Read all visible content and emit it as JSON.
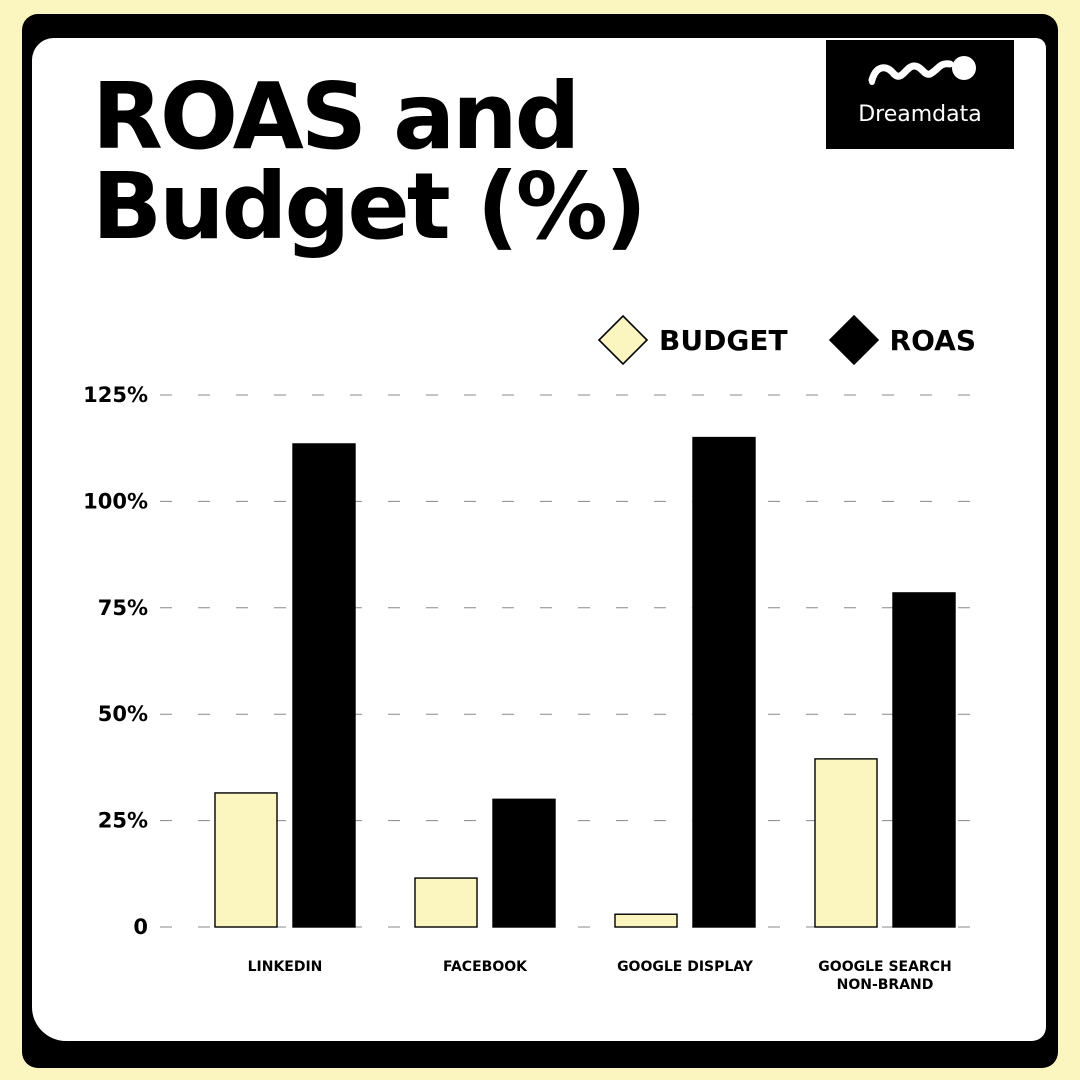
{
  "title": {
    "line1": "ROAS and",
    "line2": "Budget (%)"
  },
  "logo": {
    "text": "Dreamdata"
  },
  "colors": {
    "page_background": "#fbf6bf",
    "budget": "#fbf6bf",
    "roas": "#000000",
    "card": "#ffffff",
    "logo_background": "#000000"
  },
  "chart_data": {
    "type": "bar",
    "categories": [
      [
        "LINKEDIN"
      ],
      [
        "FACEBOOK"
      ],
      [
        "GOOGLE DISPLAY"
      ],
      [
        "GOOGLE SEARCH",
        "NON-BRAND"
      ]
    ],
    "series": [
      {
        "name": "BUDGET",
        "values": [
          31.5,
          11.5,
          3,
          39.5
        ]
      },
      {
        "name": "ROAS",
        "values": [
          113.5,
          30,
          115,
          78.5
        ]
      }
    ],
    "y_ticks": [
      0,
      25,
      50,
      75,
      100,
      125
    ],
    "y_tick_labels": [
      "0",
      "25%",
      "50%",
      "75%",
      "100%",
      "125%"
    ],
    "ylim": [
      0,
      125
    ],
    "xlabel": "",
    "ylabel": "",
    "legend_position": "top-right",
    "grid": "dashed horizontal"
  }
}
